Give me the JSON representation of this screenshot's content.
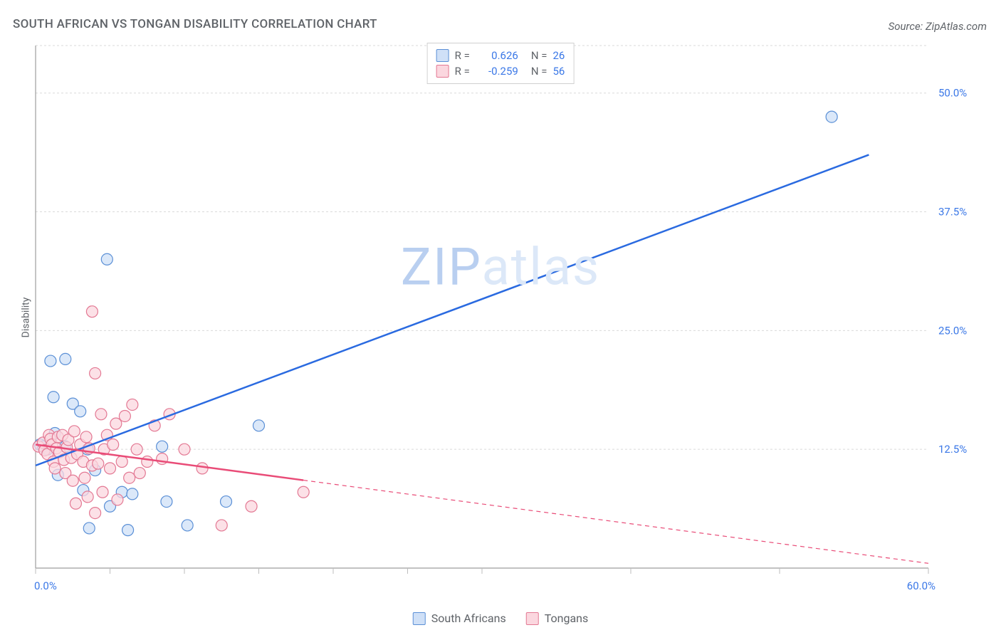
{
  "title": "SOUTH AFRICAN VS TONGAN DISABILITY CORRELATION CHART",
  "source": "Source: ZipAtlas.com",
  "ylabel": "Disability",
  "watermark": {
    "text_dark": "ZIP",
    "text_light": "atlas",
    "color_dark": "#b9cff0",
    "color_light": "#dce8f8"
  },
  "chart": {
    "type": "scatter-with-trend",
    "background_color": "#ffffff",
    "grid_color": "#dadada",
    "grid_dash": "3,3",
    "axis_color": "#9e9e9e",
    "tick_color": "#bdbdbd",
    "xlim": [
      0,
      60
    ],
    "ylim": [
      0,
      55
    ],
    "x_ticks": [
      0,
      5,
      10,
      15,
      20,
      25,
      30,
      40,
      50,
      60
    ],
    "y_gridlines": [
      12.5,
      25,
      37.5,
      50
    ],
    "x_axis_labels": [
      {
        "value": 0,
        "text": "0.0%"
      },
      {
        "value": 60,
        "text": "60.0%"
      }
    ],
    "y_axis_labels": [
      {
        "value": 12.5,
        "text": "12.5%"
      },
      {
        "value": 25,
        "text": "25.0%"
      },
      {
        "value": 37.5,
        "text": "37.5%"
      },
      {
        "value": 50,
        "text": "50.0%"
      }
    ],
    "series": [
      {
        "name": "South Africans",
        "marker_fill": "#cfe0f7",
        "marker_stroke": "#5a8fd6",
        "marker_radius": 8,
        "line_color": "#2a6ae0",
        "line_width": 2.5,
        "R": "0.626",
        "N": "26",
        "trend": {
          "x1": 0,
          "y1": 10.8,
          "x2": 56,
          "y2": 43.5,
          "solid_until_x": 56
        },
        "points": [
          [
            0.3,
            13.0
          ],
          [
            0.5,
            12.8
          ],
          [
            0.8,
            12.5
          ],
          [
            1.0,
            21.8
          ],
          [
            2.0,
            22.0
          ],
          [
            1.2,
            18.0
          ],
          [
            2.5,
            17.3
          ],
          [
            1.3,
            14.2
          ],
          [
            3.0,
            16.5
          ],
          [
            2.0,
            12.8
          ],
          [
            3.5,
            12.5
          ],
          [
            4.0,
            10.3
          ],
          [
            1.5,
            9.8
          ],
          [
            3.2,
            8.2
          ],
          [
            5.8,
            8.0
          ],
          [
            6.2,
            4.0
          ],
          [
            6.5,
            7.8
          ],
          [
            3.6,
            4.2
          ],
          [
            4.8,
            32.5
          ],
          [
            8.5,
            12.8
          ],
          [
            8.8,
            7.0
          ],
          [
            10.2,
            4.5
          ],
          [
            12.8,
            7.0
          ],
          [
            15.0,
            15.0
          ],
          [
            5.0,
            6.5
          ],
          [
            53.5,
            47.5
          ]
        ]
      },
      {
        "name": "Tongans",
        "marker_fill": "#fbd7df",
        "marker_stroke": "#e37893",
        "marker_radius": 8,
        "line_color": "#e94b77",
        "line_width": 2.5,
        "R": "-0.259",
        "N": "56",
        "trend": {
          "x1": 0,
          "y1": 13.0,
          "x2": 60,
          "y2": 0.5,
          "solid_until_x": 18
        },
        "points": [
          [
            0.2,
            12.8
          ],
          [
            0.5,
            13.2
          ],
          [
            0.6,
            12.4
          ],
          [
            0.8,
            12.0
          ],
          [
            0.9,
            14.0
          ],
          [
            1.0,
            13.6
          ],
          [
            1.1,
            13.0
          ],
          [
            1.2,
            11.2
          ],
          [
            1.3,
            10.5
          ],
          [
            1.4,
            12.6
          ],
          [
            1.5,
            13.8
          ],
          [
            1.6,
            12.2
          ],
          [
            1.8,
            14.0
          ],
          [
            1.9,
            11.4
          ],
          [
            2.0,
            10.0
          ],
          [
            2.1,
            12.7
          ],
          [
            2.2,
            13.5
          ],
          [
            2.4,
            11.6
          ],
          [
            2.5,
            9.2
          ],
          [
            2.6,
            14.4
          ],
          [
            2.7,
            6.8
          ],
          [
            2.8,
            12.0
          ],
          [
            3.0,
            13.0
          ],
          [
            3.2,
            11.2
          ],
          [
            3.3,
            9.5
          ],
          [
            3.4,
            13.8
          ],
          [
            3.5,
            7.5
          ],
          [
            3.6,
            12.6
          ],
          [
            3.8,
            10.8
          ],
          [
            4.0,
            5.8
          ],
          [
            4.0,
            20.5
          ],
          [
            4.2,
            11.0
          ],
          [
            4.4,
            16.2
          ],
          [
            4.5,
            8.0
          ],
          [
            4.6,
            12.5
          ],
          [
            4.8,
            14.0
          ],
          [
            5.0,
            10.5
          ],
          [
            5.2,
            13.0
          ],
          [
            5.4,
            15.2
          ],
          [
            5.5,
            7.2
          ],
          [
            5.8,
            11.2
          ],
          [
            6.0,
            16.0
          ],
          [
            6.3,
            9.5
          ],
          [
            6.5,
            17.2
          ],
          [
            6.8,
            12.5
          ],
          [
            7.0,
            10.0
          ],
          [
            7.5,
            11.2
          ],
          [
            8.0,
            15.0
          ],
          [
            8.5,
            11.5
          ],
          [
            9.0,
            16.2
          ],
          [
            10.0,
            12.5
          ],
          [
            11.2,
            10.5
          ],
          [
            12.5,
            4.5
          ],
          [
            14.5,
            6.5
          ],
          [
            18.0,
            8.0
          ],
          [
            3.8,
            27.0
          ]
        ]
      }
    ],
    "legend": {
      "r_label": "R =",
      "n_label": "N ="
    }
  }
}
